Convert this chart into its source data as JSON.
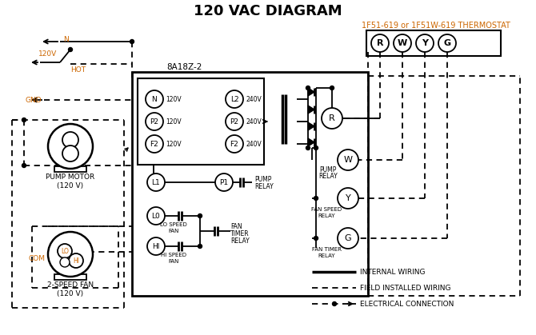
{
  "title": "120 VAC DIAGRAM",
  "bg_color": "#ffffff",
  "line_color": "#000000",
  "orange_color": "#cc6600",
  "legend_internal": "INTERNAL WIRING",
  "legend_field": "FIELD INSTALLED WIRING",
  "legend_electrical": "ELECTRICAL CONNECTION",
  "thermostat_label": "1F51-619 or 1F51W-619 THERMOSTAT",
  "module_label": "8A18Z-2",
  "pump_motor_label": "PUMP MOTOR\n(120 V)",
  "fan_label": "2-SPEED FAN\n(120 V)",
  "n_label": "N",
  "hot_label": "HOT",
  "gnd_label": "GND",
  "v120_label": "120V",
  "com_label": "COM"
}
